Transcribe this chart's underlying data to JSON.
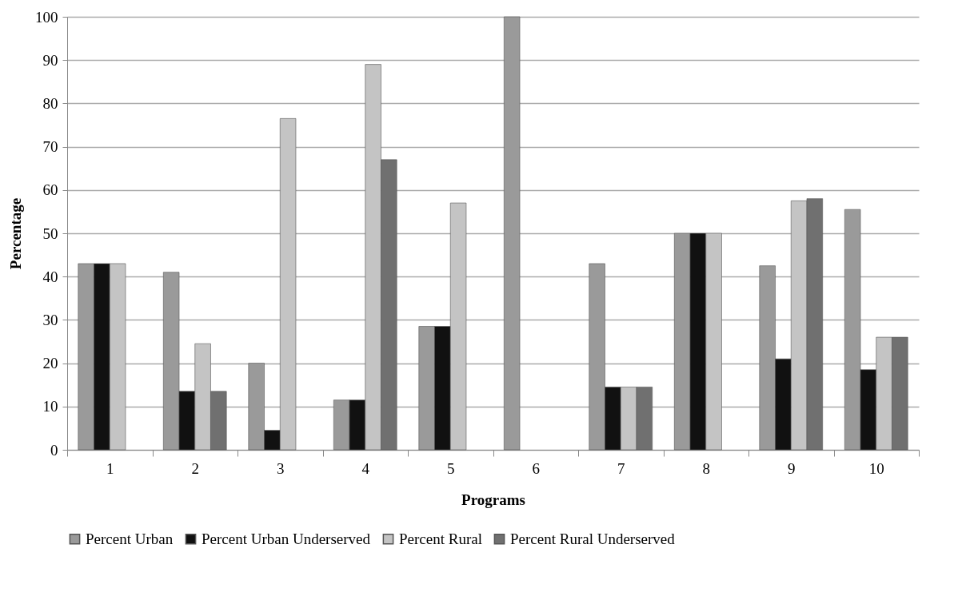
{
  "chart_data": {
    "type": "bar",
    "xlabel": "Programs",
    "ylabel": "Percentage",
    "categories": [
      "1",
      "2",
      "3",
      "4",
      "5",
      "6",
      "7",
      "8",
      "9",
      "10"
    ],
    "series": [
      {
        "name": "Percent Urban",
        "color": "#9a9a9a",
        "values": [
          43,
          41,
          20,
          11.5,
          28.5,
          100,
          43,
          50,
          42.5,
          55.5
        ]
      },
      {
        "name": "Percent Urban Underserved",
        "color": "#111111",
        "values": [
          43,
          13.5,
          4.5,
          11.5,
          28.5,
          null,
          14.5,
          50,
          21,
          18.5
        ]
      },
      {
        "name": "Percent Rural",
        "color": "#c4c4c4",
        "values": [
          43,
          24.5,
          76.5,
          89,
          57,
          null,
          14.5,
          50,
          57.5,
          26
        ]
      },
      {
        "name": "Percent Rural Underserved",
        "color": "#707070",
        "values": [
          null,
          13.5,
          null,
          67,
          null,
          null,
          14.5,
          null,
          58,
          26
        ]
      }
    ],
    "ylim": [
      0,
      100
    ],
    "yticks": [
      0,
      10,
      20,
      30,
      40,
      50,
      60,
      70,
      80,
      90,
      100
    ],
    "grid": "y",
    "legend": "bottom"
  }
}
